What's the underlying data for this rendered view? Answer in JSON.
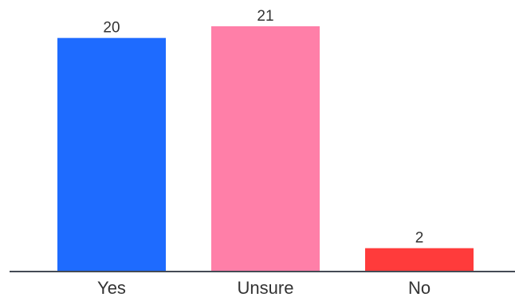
{
  "chart_data": {
    "type": "bar",
    "title": "",
    "xlabel": "",
    "ylabel": "",
    "categories": [
      "Yes",
      "Unsure",
      "No"
    ],
    "values": [
      20,
      21,
      2
    ],
    "data_labels": [
      "20",
      "21",
      "2"
    ],
    "colors": [
      "#1e6bff",
      "#ff7fa8",
      "#ff3b3b"
    ],
    "axis_color": "#444b55",
    "ylim": [
      0,
      21
    ],
    "grid": false,
    "legend": "none"
  }
}
